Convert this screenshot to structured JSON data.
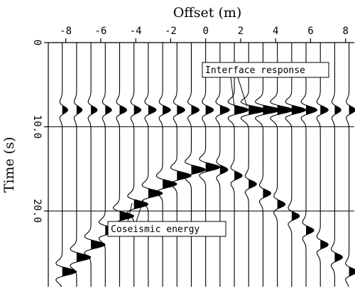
{
  "chart_data": {
    "type": "wiggle",
    "xlabel": "Offset (m)",
    "ylabel": "Time (s)",
    "x": [
      -8.2,
      -7.38,
      -6.56,
      -5.74,
      -4.92,
      -4.1,
      -3.28,
      -2.46,
      -1.64,
      -0.82,
      0,
      0.82,
      1.64,
      2.46,
      3.28,
      4.1,
      4.92,
      5.74,
      6.56,
      7.38,
      8.2
    ],
    "xlim": [
      -9,
      8.5
    ],
    "xticks": [
      -8,
      -6,
      -4,
      -2,
      0,
      2,
      4,
      6,
      8
    ],
    "ylim": [
      0,
      29
    ],
    "yticks": [
      0,
      {
        "value": 10,
        "label": "10.0"
      },
      {
        "value": 20,
        "label": "20.0"
      }
    ],
    "y_reversed": true,
    "grid": true,
    "color": "#000000",
    "events": [
      {
        "label": "Interface response",
        "times": [
          8,
          8,
          8,
          8,
          8,
          8,
          8,
          8,
          8,
          8,
          8,
          8,
          8,
          8,
          8,
          8,
          8,
          8,
          8,
          8,
          8
        ],
        "amplitudes": [
          0.35,
          0.35,
          0.4,
          0.4,
          0.45,
          0.45,
          0.5,
          0.5,
          0.5,
          0.5,
          0.5,
          0.6,
          0.9,
          1.1,
          1.1,
          1.0,
          0.9,
          0.7,
          0.5,
          0.4,
          0.4
        ]
      },
      {
        "label": "Coseismic energy",
        "times": [
          27.2,
          25.5,
          24,
          22.3,
          20.6,
          19.2,
          17.9,
          16.8,
          15.8,
          15.1,
          14.8,
          15.1,
          15.8,
          16.8,
          17.9,
          19.2,
          20.6,
          22.3,
          24,
          25.5,
          27.2
        ],
        "amplitudes": [
          0.9,
          0.9,
          0.9,
          0.9,
          0.9,
          0.9,
          0.9,
          0.9,
          0.9,
          0.9,
          0.9,
          0.5,
          0.5,
          0.5,
          0.5,
          0.5,
          0.5,
          0.5,
          0.5,
          0.5,
          0.5
        ]
      }
    ]
  }
}
